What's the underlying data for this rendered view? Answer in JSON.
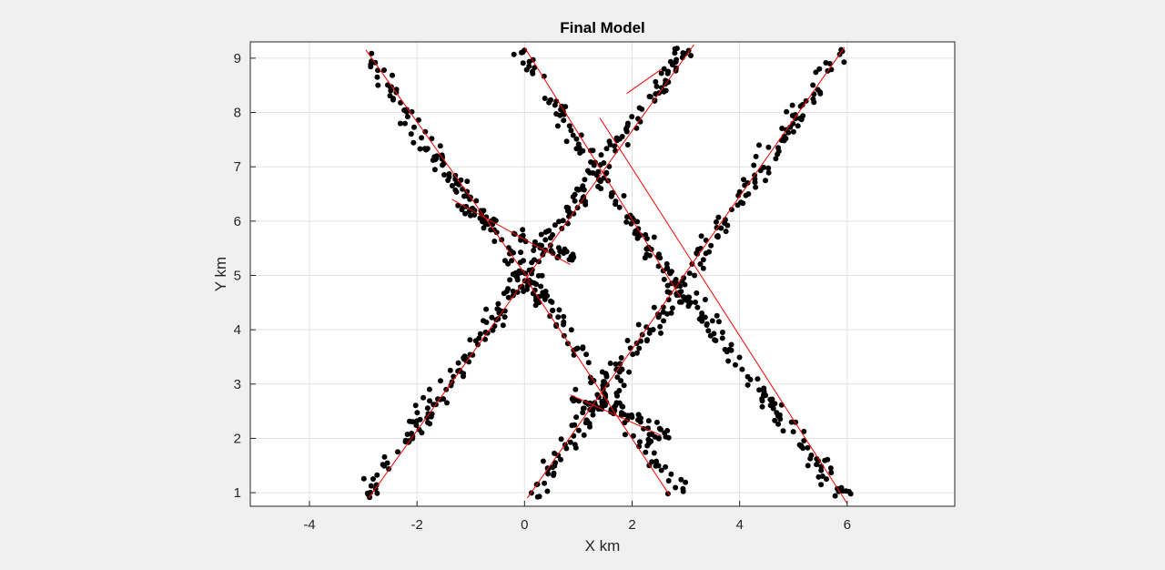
{
  "chart_data": {
    "type": "scatter",
    "title": "Final Model",
    "xlabel": "X km",
    "ylabel": "Y km",
    "xlim": [
      -5.1,
      8.0
    ],
    "ylim": [
      0.75,
      9.3
    ],
    "xticks": [
      -4,
      -2,
      0,
      2,
      4,
      6
    ],
    "yticks": [
      1,
      2,
      3,
      4,
      5,
      6,
      7,
      8,
      9
    ],
    "grid": true,
    "legend": "none",
    "point_color": "#000000",
    "line_color": "#ff0000",
    "fault_lines": [
      {
        "x1": -2.95,
        "y1": 9.15,
        "x2": 0.1,
        "y2": 4.9
      },
      {
        "x1": 0.0,
        "y1": 9.2,
        "x2": 2.9,
        "y2": 4.6
      },
      {
        "x1": 0.05,
        "y1": 4.9,
        "x2": 2.7,
        "y2": 0.95
      },
      {
        "x1": 1.4,
        "y1": 7.9,
        "x2": 6.0,
        "y2": 0.8
      },
      {
        "x1": -2.9,
        "y1": 0.9,
        "x2": 3.15,
        "y2": 9.25
      },
      {
        "x1": 0.05,
        "y1": 0.9,
        "x2": 5.95,
        "y2": 9.2
      },
      {
        "x1": -1.35,
        "y1": 6.4,
        "x2": 0.85,
        "y2": 5.2
      },
      {
        "x1": 1.9,
        "y1": 8.35,
        "x2": 2.55,
        "y2": 8.8
      },
      {
        "x1": 0.85,
        "y1": 2.8,
        "x2": 2.55,
        "y2": 2.05
      }
    ],
    "scatter_groups": [
      {
        "x1": -3.05,
        "y1": 9.1,
        "x2": 0.3,
        "y2": 4.6,
        "n": 110,
        "spread": 0.28
      },
      {
        "x1": -0.1,
        "y1": 9.15,
        "x2": 3.0,
        "y2": 4.5,
        "n": 110,
        "spread": 0.28
      },
      {
        "x1": 0.1,
        "y1": 4.95,
        "x2": 2.9,
        "y2": 0.95,
        "n": 90,
        "spread": 0.28
      },
      {
        "x1": 2.8,
        "y1": 4.9,
        "x2": 6.0,
        "y2": 0.85,
        "n": 100,
        "spread": 0.28
      },
      {
        "x1": -3.0,
        "y1": 0.85,
        "x2": 3.0,
        "y2": 9.2,
        "n": 220,
        "spread": 0.3
      },
      {
        "x1": 0.1,
        "y1": 0.85,
        "x2": 5.9,
        "y2": 9.15,
        "n": 200,
        "spread": 0.3
      },
      {
        "x1": -1.4,
        "y1": 6.4,
        "x2": 0.9,
        "y2": 5.3,
        "n": 50,
        "spread": 0.25
      },
      {
        "x1": 0.9,
        "y1": 2.8,
        "x2": 2.7,
        "y2": 2.0,
        "n": 40,
        "spread": 0.25
      }
    ]
  }
}
